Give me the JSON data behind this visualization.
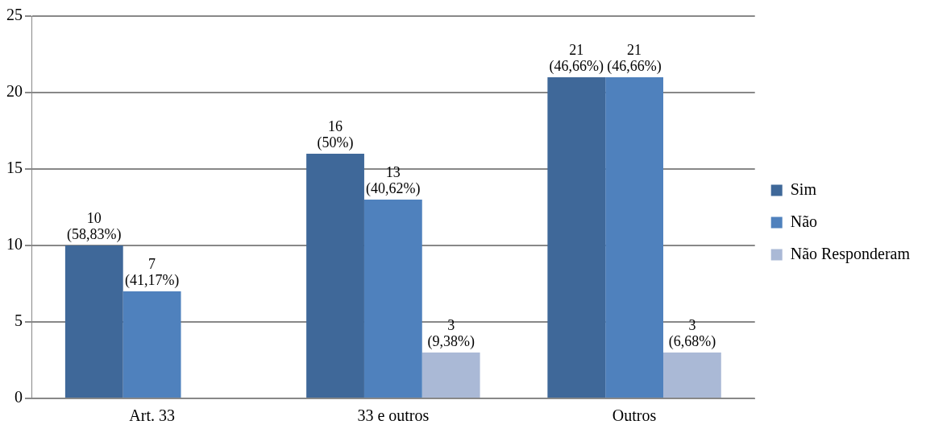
{
  "chart_data": {
    "type": "bar",
    "categories": [
      "Art. 33",
      "33 e outros",
      "Outros"
    ],
    "series": [
      {
        "name": "Sim",
        "color": "#3f6899",
        "values": [
          10,
          16,
          21
        ],
        "value_labels": [
          "10 (58,83%)",
          "16 (50%)",
          "21 (46,66%)"
        ]
      },
      {
        "name": "Não",
        "color": "#4f81bd",
        "values": [
          7,
          13,
          21
        ],
        "value_labels": [
          "7 (41,17%)",
          "13 (40,62%)",
          "21 (46,66%)"
        ]
      },
      {
        "name": "Não Responderam",
        "color": "#aab9d6",
        "values": [
          null,
          3,
          3
        ],
        "value_labels": [
          null,
          "3 (9,38%)",
          "3 (6,68%)"
        ]
      }
    ],
    "ylim": [
      0,
      25
    ],
    "yticks": [
      0,
      5,
      10,
      15,
      20,
      25
    ],
    "grid": "y",
    "legend": "right"
  }
}
